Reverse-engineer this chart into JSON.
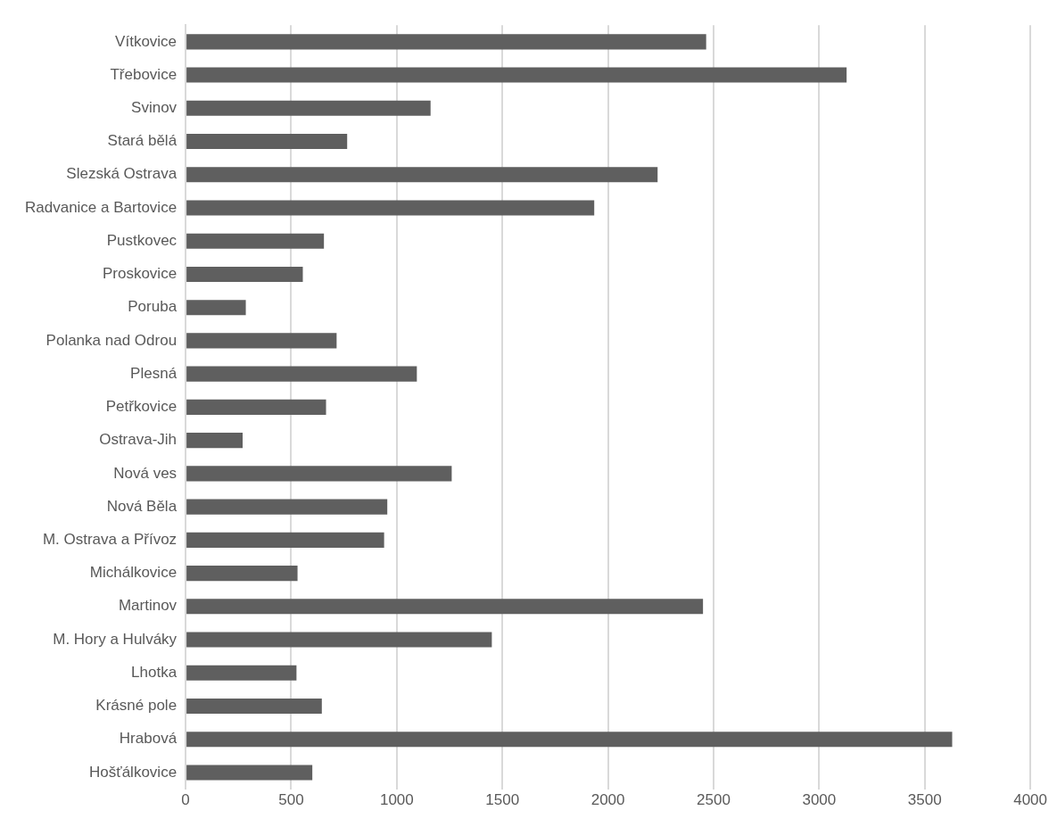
{
  "chart_data": {
    "type": "bar",
    "orientation": "horizontal",
    "categories": [
      "Vítkovice",
      "Třebovice",
      "Svinov",
      "Stará bělá",
      "Slezská Ostrava",
      "Radvanice a Bartovice",
      "Pustkovec",
      "Proskovice",
      "Poruba",
      "Polanka nad Odrou",
      "Plesná",
      "Petřkovice",
      "Ostrava-Jih",
      "Nová ves",
      "Nová Běla",
      "M. Ostrava a Přívoz",
      "Michálkovice",
      "Martinov",
      "M. Hory a Hulváky",
      "Lhotka",
      "Krásné pole",
      "Hrabová",
      "Hošťálkovice"
    ],
    "values": [
      2465,
      3130,
      1160,
      765,
      2235,
      1935,
      655,
      555,
      285,
      715,
      1095,
      665,
      270,
      1260,
      955,
      940,
      530,
      2450,
      1450,
      525,
      645,
      3630,
      600
    ],
    "color": "#5f5f5f",
    "xlim": [
      0,
      4000
    ],
    "xticks": [
      0,
      500,
      1000,
      1500,
      2000,
      2500,
      3000,
      3500,
      4000
    ],
    "grid": "x",
    "legend": false
  }
}
